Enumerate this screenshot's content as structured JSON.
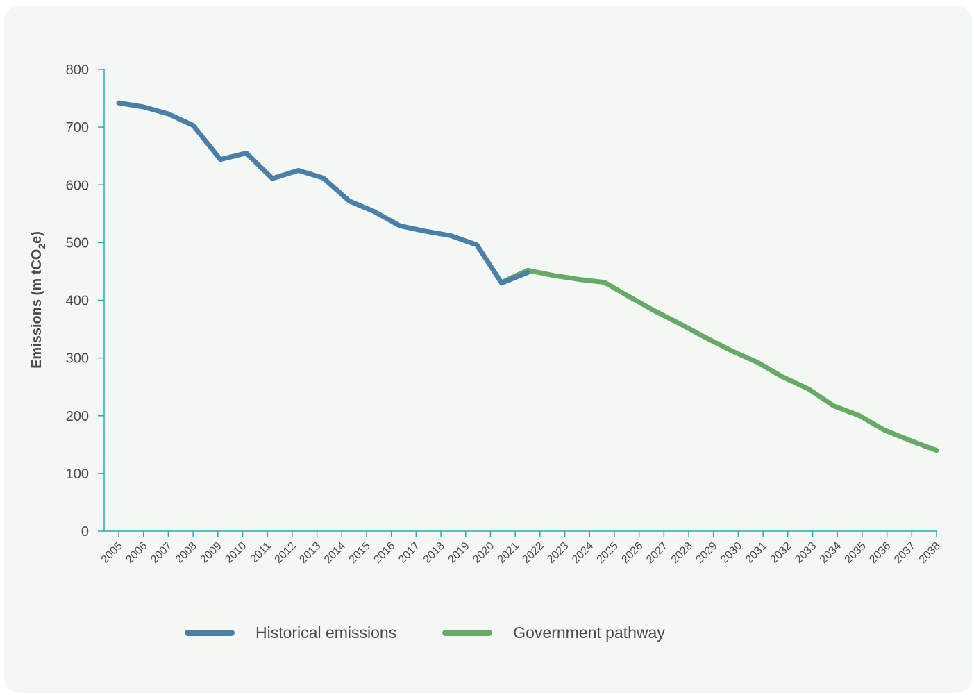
{
  "chart_data": {
    "type": "line",
    "title": "",
    "ylabel_parts": {
      "pre": "Emissions (m tCO",
      "sub1": "2",
      "mid": "e)"
    },
    "xlabel": "",
    "ylim": [
      0,
      800
    ],
    "yticks": [
      0,
      100,
      200,
      300,
      400,
      500,
      600,
      700,
      800
    ],
    "categories": [
      "2005",
      "2006",
      "2007",
      "2008",
      "2009",
      "2010",
      "2011",
      "2012",
      "2013",
      "2014",
      "2015",
      "2016",
      "2017",
      "2018",
      "2019",
      "2020",
      "2021",
      "2022",
      "2023",
      "2024",
      "2025",
      "2026",
      "2027",
      "2028",
      "2029",
      "2030",
      "2031",
      "2032",
      "2033",
      "2034",
      "2035",
      "2036",
      "2037",
      "2038"
    ],
    "series": [
      {
        "name": "Historical emissions",
        "color": "#4a7fa8",
        "points": [
          [
            2005.0,
            742
          ],
          [
            2006.0,
            735
          ],
          [
            2007.0,
            723
          ],
          [
            2008.0,
            703
          ],
          [
            2009.1,
            644
          ],
          [
            2010.15,
            655
          ],
          [
            2011.2,
            611
          ],
          [
            2012.25,
            625
          ],
          [
            2013.25,
            612
          ],
          [
            2014.3,
            572
          ],
          [
            2015.3,
            554
          ],
          [
            2016.35,
            529
          ],
          [
            2017.35,
            520
          ],
          [
            2018.4,
            512
          ],
          [
            2019.45,
            496
          ],
          [
            2020.45,
            430
          ],
          [
            2021.5,
            448
          ]
        ]
      },
      {
        "name": "Government pathway",
        "color": "#66aa66",
        "points": [
          [
            2020.45,
            431
          ],
          [
            2021.5,
            452
          ],
          [
            2022.55,
            443
          ],
          [
            2023.6,
            436
          ],
          [
            2024.6,
            431
          ],
          [
            2025.65,
            405
          ],
          [
            2026.65,
            381
          ],
          [
            2027.7,
            358
          ],
          [
            2028.7,
            335
          ],
          [
            2029.75,
            312
          ],
          [
            2030.8,
            292
          ],
          [
            2031.8,
            267
          ],
          [
            2032.85,
            246
          ],
          [
            2033.85,
            217
          ],
          [
            2034.9,
            200
          ],
          [
            2035.9,
            175
          ],
          [
            2037.0,
            156
          ],
          [
            2038.0,
            140
          ]
        ]
      }
    ],
    "grid": false,
    "legend_position": "bottom"
  },
  "legend": {
    "historical_label": "Historical emissions",
    "pathway_label": "Government pathway",
    "historical_color": "#4a7fa8",
    "pathway_color": "#66aa66"
  }
}
